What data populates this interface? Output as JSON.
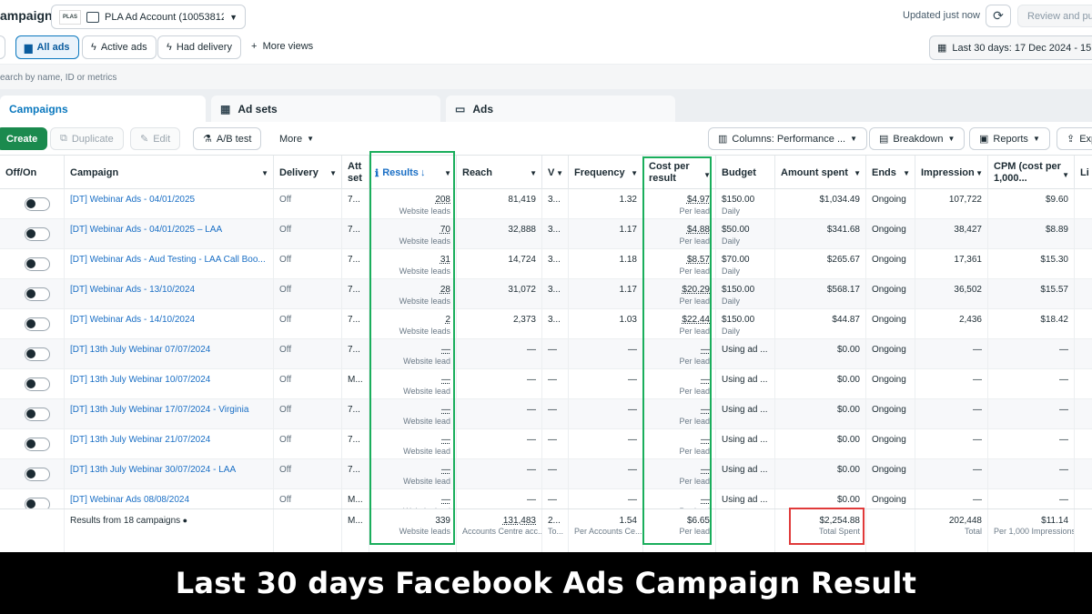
{
  "header": {
    "title": "ampaigns",
    "account": "PLA Ad Account (10053812...",
    "account_logo": "PLAS",
    "updated": "Updated just now",
    "review_label": "Review and pub"
  },
  "filters": {
    "all_ads": "All ads",
    "active_ads": "Active ads",
    "had_delivery": "Had delivery",
    "more_views": "More views",
    "date_range": "Last 30 days: 17 Dec 2024 - 15 J"
  },
  "search": {
    "placeholder": "earch by name, ID or metrics"
  },
  "tabs": [
    {
      "label": "Campaigns"
    },
    {
      "label": "Ad sets"
    },
    {
      "label": "Ads"
    }
  ],
  "actions": {
    "create": "Create",
    "duplicate": "Duplicate",
    "edit": "Edit",
    "ab_test": "A/B test",
    "more": "More",
    "columns": "Columns: Performance ...",
    "breakdown": "Breakdown",
    "reports": "Reports",
    "export": "Exp"
  },
  "columns": {
    "offon": "Off/On",
    "campaign": "Campaign",
    "delivery": "Delivery",
    "attribution": "Att set",
    "results": "Results",
    "reach": "Reach",
    "v": "V",
    "frequency": "Frequency",
    "cost_per_result": "Cost per result",
    "budget": "Budget",
    "amount_spent": "Amount spent",
    "ends": "Ends",
    "impression": "Impression",
    "cpm": "CPM (cost per 1,000...",
    "li": "Li"
  },
  "rows": [
    {
      "campaign": "[DT] Webinar Ads - 04/01/2025",
      "delivery": "Off",
      "att": "7...",
      "results": "208",
      "results_sub": "Website leads",
      "reach": "81,419",
      "v": "3...",
      "frequency": "1.32",
      "cpr": "$4.97",
      "cpr_sub": "Per lead",
      "budget": "$150.00",
      "budget_sub": "Daily",
      "spent": "$1,034.49",
      "ends": "Ongoing",
      "impression": "107,722",
      "cpm": "$9.60"
    },
    {
      "campaign": "[DT] Webinar Ads - 04/01/2025 – LAA",
      "delivery": "Off",
      "att": "7...",
      "results": "70",
      "results_sub": "Website leads",
      "reach": "32,888",
      "v": "3...",
      "frequency": "1.17",
      "cpr": "$4.88",
      "cpr_sub": "Per lead",
      "budget": "$50.00",
      "budget_sub": "Daily",
      "spent": "$341.68",
      "ends": "Ongoing",
      "impression": "38,427",
      "cpm": "$8.89"
    },
    {
      "campaign": "[DT] Webinar Ads - Aud Testing - LAA Call Boo...",
      "delivery": "Off",
      "att": "7...",
      "results": "31",
      "results_sub": "Website leads",
      "reach": "14,724",
      "v": "3...",
      "frequency": "1.18",
      "cpr": "$8.57",
      "cpr_sub": "Per lead",
      "budget": "$70.00",
      "budget_sub": "Daily",
      "spent": "$265.67",
      "ends": "Ongoing",
      "impression": "17,361",
      "cpm": "$15.30"
    },
    {
      "campaign": "[DT] Webinar Ads - 13/10/2024",
      "delivery": "Off",
      "att": "7...",
      "results": "28",
      "results_sub": "Website leads",
      "reach": "31,072",
      "v": "3...",
      "frequency": "1.17",
      "cpr": "$20.29",
      "cpr_sub": "Per lead",
      "budget": "$150.00",
      "budget_sub": "Daily",
      "spent": "$568.17",
      "ends": "Ongoing",
      "impression": "36,502",
      "cpm": "$15.57"
    },
    {
      "campaign": "[DT] Webinar Ads - 14/10/2024",
      "delivery": "Off",
      "att": "7...",
      "results": "2",
      "results_sub": "Website leads",
      "reach": "2,373",
      "v": "3...",
      "frequency": "1.03",
      "cpr": "$22.44",
      "cpr_sub": "Per lead",
      "budget": "$150.00",
      "budget_sub": "Daily",
      "spent": "$44.87",
      "ends": "Ongoing",
      "impression": "2,436",
      "cpm": "$18.42"
    },
    {
      "campaign": "[DT] 13th July Webinar 07/07/2024",
      "delivery": "Off",
      "att": "7...",
      "results": "—",
      "results_sub": "Website lead",
      "reach": "—",
      "v": "—",
      "frequency": "—",
      "cpr": "—",
      "cpr_sub": "Per lead",
      "budget": "Using ad ...",
      "budget_sub": "",
      "spent": "$0.00",
      "ends": "Ongoing",
      "impression": "—",
      "cpm": "—"
    },
    {
      "campaign": "[DT] 13th July Webinar 10/07/2024",
      "delivery": "Off",
      "att": "M...",
      "results": "—",
      "results_sub": "Website lead",
      "reach": "—",
      "v": "—",
      "frequency": "—",
      "cpr": "—",
      "cpr_sub": "Per lead",
      "budget": "Using ad ...",
      "budget_sub": "",
      "spent": "$0.00",
      "ends": "Ongoing",
      "impression": "—",
      "cpm": "—"
    },
    {
      "campaign": "[DT] 13th July Webinar 17/07/2024 - Virginia",
      "delivery": "Off",
      "att": "7...",
      "results": "—",
      "results_sub": "Website lead",
      "reach": "—",
      "v": "—",
      "frequency": "—",
      "cpr": "—",
      "cpr_sub": "Per lead",
      "budget": "Using ad ...",
      "budget_sub": "",
      "spent": "$0.00",
      "ends": "Ongoing",
      "impression": "—",
      "cpm": "—"
    },
    {
      "campaign": "[DT] 13th July Webinar 21/07/2024",
      "delivery": "Off",
      "att": "7...",
      "results": "—",
      "results_sub": "Website lead",
      "reach": "—",
      "v": "—",
      "frequency": "—",
      "cpr": "—",
      "cpr_sub": "Per lead",
      "budget": "Using ad ...",
      "budget_sub": "",
      "spent": "$0.00",
      "ends": "Ongoing",
      "impression": "—",
      "cpm": "—"
    },
    {
      "campaign": "[DT] 13th July Webinar 30/07/2024 - LAA",
      "delivery": "Off",
      "att": "7...",
      "results": "—",
      "results_sub": "Website lead",
      "reach": "—",
      "v": "—",
      "frequency": "—",
      "cpr": "—",
      "cpr_sub": "Per lead",
      "budget": "Using ad ...",
      "budget_sub": "",
      "spent": "$0.00",
      "ends": "Ongoing",
      "impression": "—",
      "cpm": "—"
    },
    {
      "campaign": "[DT] Webinar Ads 08/08/2024",
      "delivery": "Off",
      "att": "M...",
      "results": "—",
      "results_sub": "Website lead",
      "reach": "—",
      "v": "—",
      "frequency": "—",
      "cpr": "—",
      "cpr_sub": "Per lead",
      "budget": "Using ad ...",
      "budget_sub": "",
      "spent": "$0.00",
      "ends": "Ongoing",
      "impression": "—",
      "cpm": "—"
    }
  ],
  "summary": {
    "label": "Results from 18 campaigns",
    "att": "M...",
    "results": "339",
    "results_sub": "Website leads",
    "reach": "131,483",
    "reach_sub": "Accounts Centre acc...",
    "v": "2...",
    "v_sub": "To...",
    "frequency": "1.54",
    "frequency_sub": "Per Accounts Ce...",
    "cpr": "$6.65",
    "cpr_sub": "Per lead",
    "spent": "$2,254.88",
    "spent_sub": "Total Spent",
    "impression": "202,448",
    "impression_sub": "Total",
    "cpm": "$11.14",
    "cpm_sub": "Per 1,000 Impressions"
  },
  "banner": {
    "text": "Last 30 days Facebook Ads Campaign Result"
  },
  "colors": {
    "highlight_green": "#1aae5c",
    "highlight_red": "#e03a3a",
    "create_green": "#1b8a4e",
    "link_blue": "#1a6fc5"
  }
}
